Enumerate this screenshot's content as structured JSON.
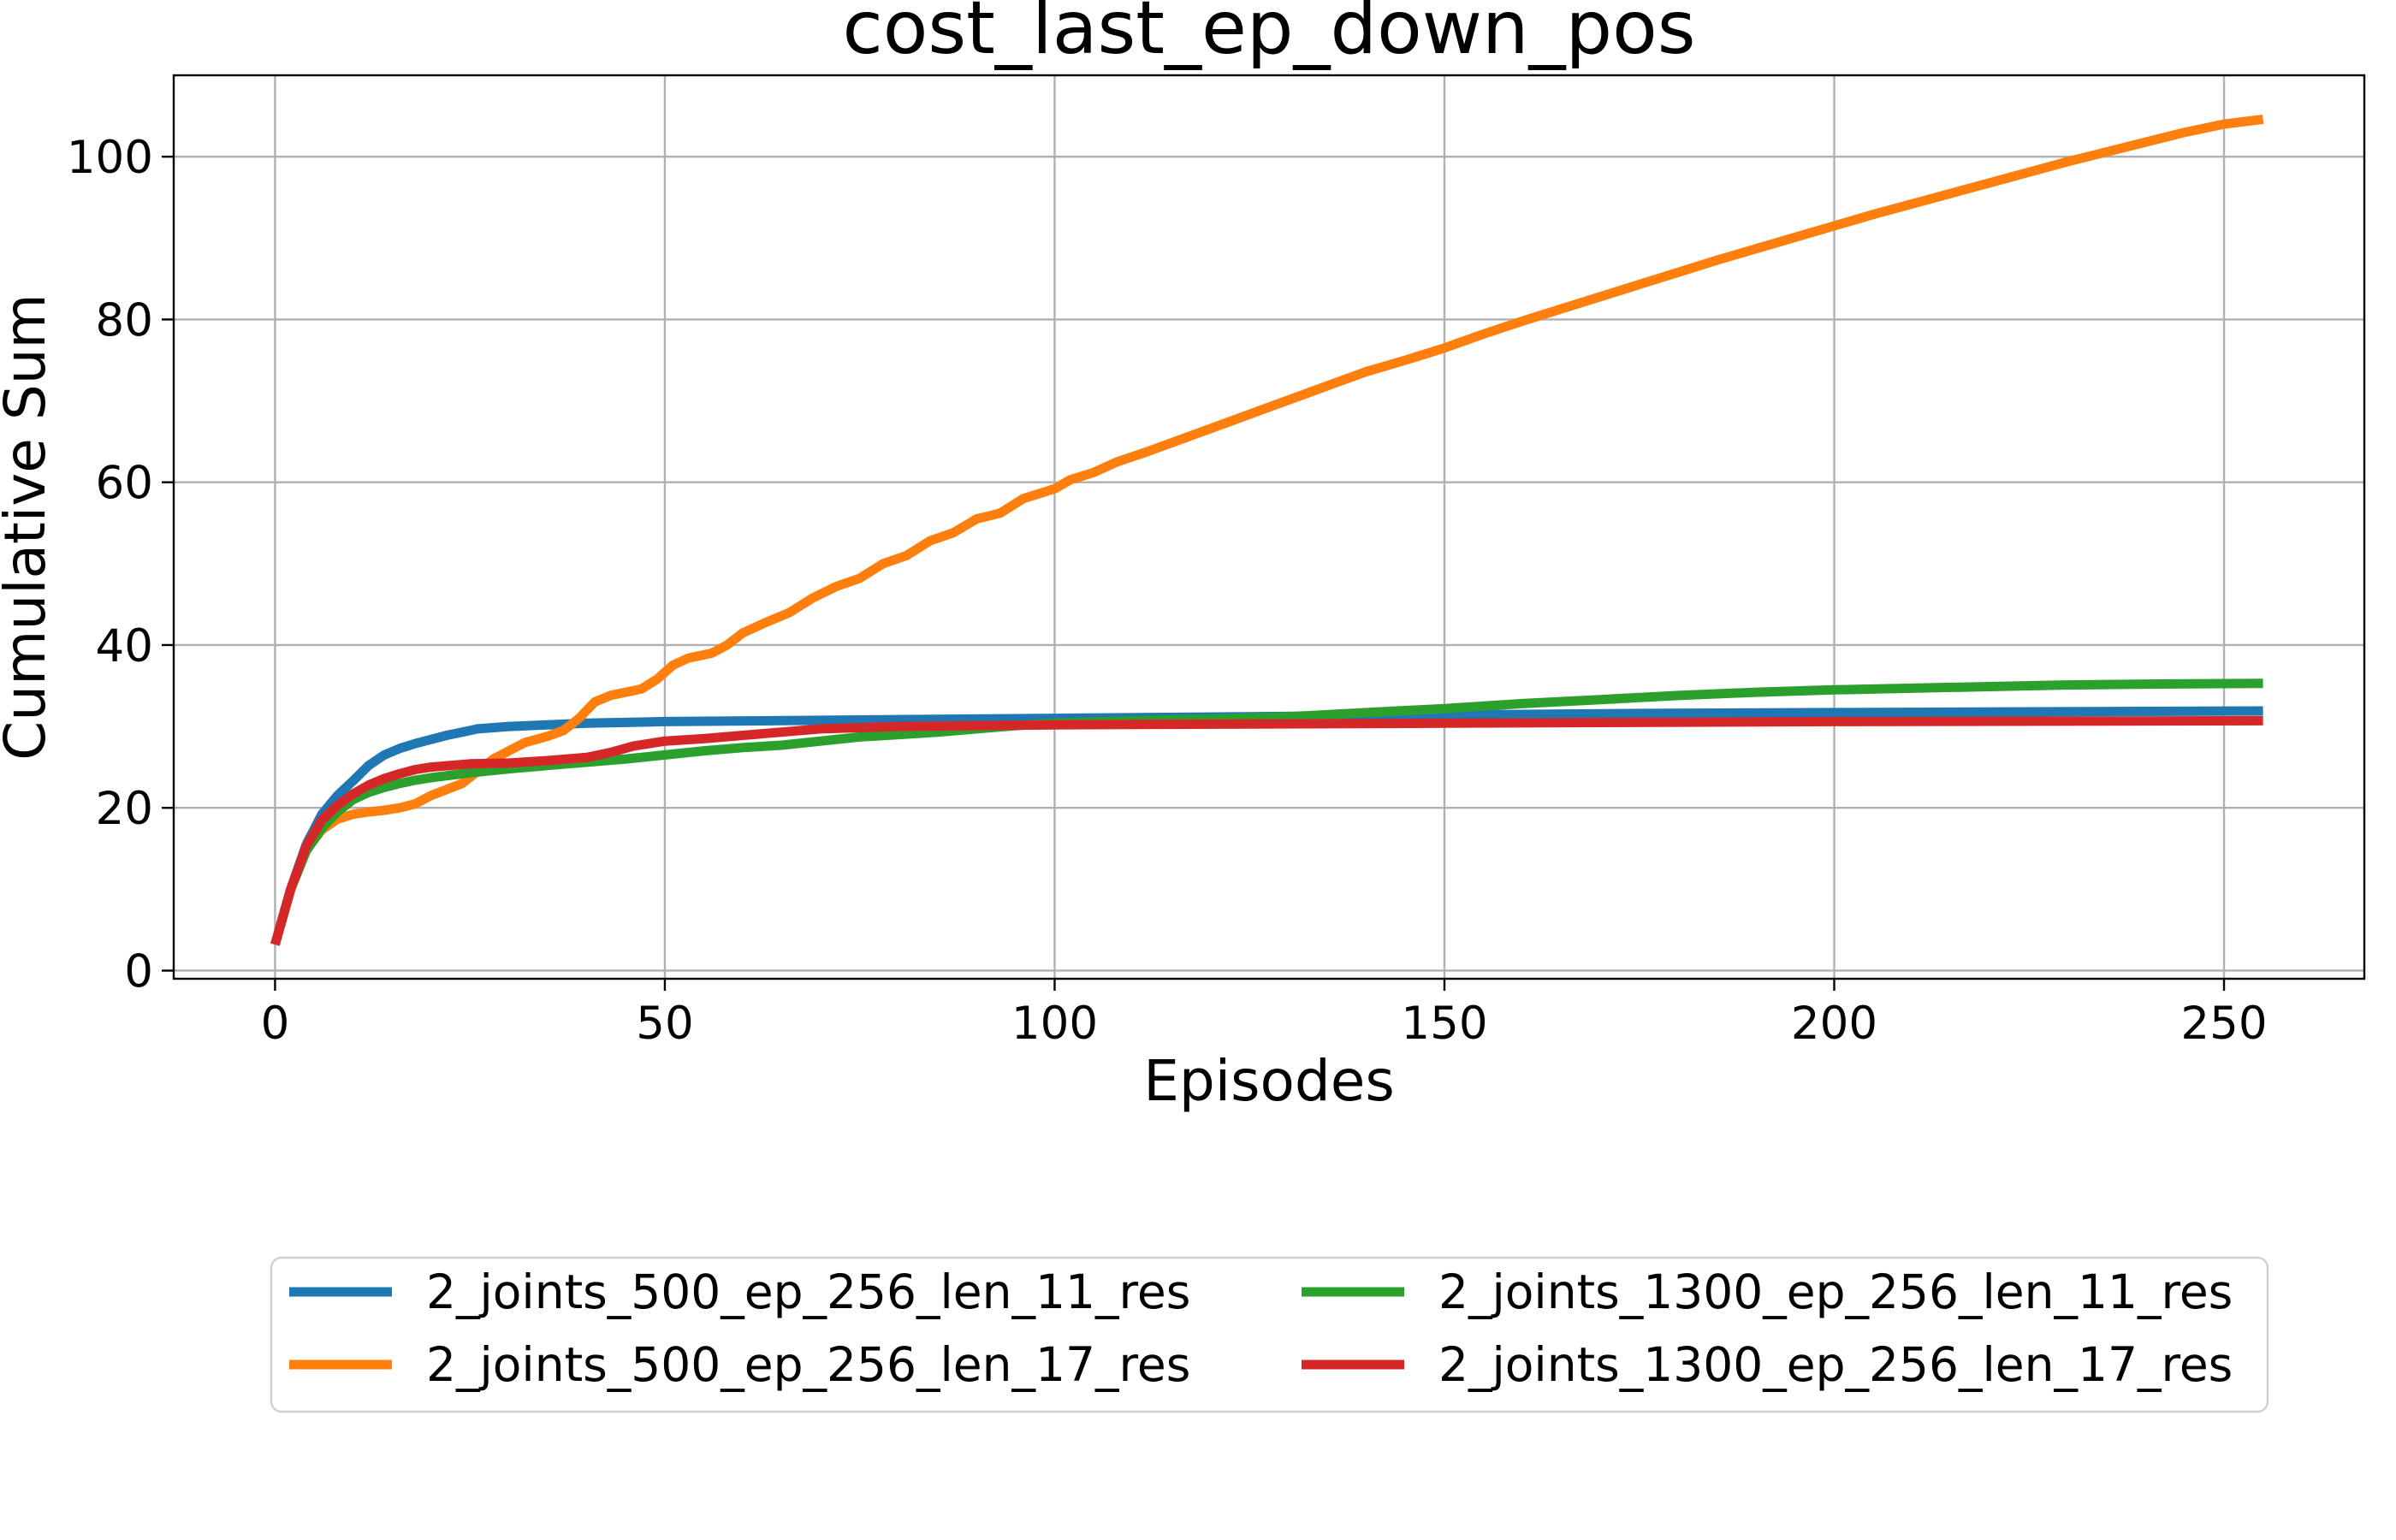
{
  "chart_data": {
    "type": "line",
    "title": "cost_last_ep_down_pos",
    "xlabel": "Episodes",
    "ylabel": "Cumulative Sum",
    "xlim": [
      -13,
      268
    ],
    "ylim": [
      -1,
      110
    ],
    "xticks": [
      0,
      50,
      100,
      150,
      200,
      250
    ],
    "yticks": [
      0,
      20,
      40,
      60,
      80,
      100
    ],
    "grid": true,
    "legend_position": "below plot, two columns",
    "series": [
      {
        "name": "2_joints_500_ep_256_len_11_res",
        "color": "#1f77b4",
        "points": [
          [
            0,
            3.2
          ],
          [
            2,
            10
          ],
          [
            4,
            15.5
          ],
          [
            6,
            19.2
          ],
          [
            8,
            21.5
          ],
          [
            10,
            23.3
          ],
          [
            12,
            25.2
          ],
          [
            14,
            26.5
          ],
          [
            16,
            27.3
          ],
          [
            18,
            27.9
          ],
          [
            20,
            28.4
          ],
          [
            22,
            28.9
          ],
          [
            24,
            29.3
          ],
          [
            26,
            29.7
          ],
          [
            30,
            30.0
          ],
          [
            35,
            30.2
          ],
          [
            40,
            30.4
          ],
          [
            50,
            30.6
          ],
          [
            75,
            30.8
          ],
          [
            100,
            31.0
          ],
          [
            125,
            31.2
          ],
          [
            150,
            31.4
          ],
          [
            175,
            31.6
          ],
          [
            200,
            31.7
          ],
          [
            225,
            31.8
          ],
          [
            255,
            31.9
          ]
        ]
      },
      {
        "name": "2_joints_500_ep_256_len_17_res",
        "color": "#ff7f0e",
        "points": [
          [
            0,
            3.2
          ],
          [
            2,
            10
          ],
          [
            4,
            14.8
          ],
          [
            6,
            17.3
          ],
          [
            8,
            18.6
          ],
          [
            10,
            19.2
          ],
          [
            12,
            19.5
          ],
          [
            14,
            19.7
          ],
          [
            16,
            20.0
          ],
          [
            18,
            20.5
          ],
          [
            20,
            21.5
          ],
          [
            24,
            23.0
          ],
          [
            26,
            24.5
          ],
          [
            28,
            26.0
          ],
          [
            30,
            27.0
          ],
          [
            32,
            28.0
          ],
          [
            35,
            28.8
          ],
          [
            37,
            29.5
          ],
          [
            39,
            31.0
          ],
          [
            41,
            33.0
          ],
          [
            43,
            33.8
          ],
          [
            45,
            34.2
          ],
          [
            47,
            34.6
          ],
          [
            49,
            35.8
          ],
          [
            51,
            37.5
          ],
          [
            53,
            38.4
          ],
          [
            56,
            39.0
          ],
          [
            58,
            40.0
          ],
          [
            60,
            41.5
          ],
          [
            63,
            42.8
          ],
          [
            66,
            44.0
          ],
          [
            69,
            45.8
          ],
          [
            72,
            47.2
          ],
          [
            75,
            48.2
          ],
          [
            78,
            50.0
          ],
          [
            81,
            51.0
          ],
          [
            84,
            52.8
          ],
          [
            87,
            53.8
          ],
          [
            90,
            55.5
          ],
          [
            93,
            56.2
          ],
          [
            96,
            58.0
          ],
          [
            100,
            59.2
          ],
          [
            102,
            60.3
          ],
          [
            105,
            61.2
          ],
          [
            108,
            62.5
          ],
          [
            112,
            63.8
          ],
          [
            116,
            65.2
          ],
          [
            120,
            66.6
          ],
          [
            124,
            68.0
          ],
          [
            128,
            69.4
          ],
          [
            132,
            70.8
          ],
          [
            136,
            72.2
          ],
          [
            140,
            73.6
          ],
          [
            145,
            75.0
          ],
          [
            150,
            76.5
          ],
          [
            155,
            78.2
          ],
          [
            160,
            79.8
          ],
          [
            165,
            81.3
          ],
          [
            170,
            82.8
          ],
          [
            175,
            84.3
          ],
          [
            180,
            85.8
          ],
          [
            185,
            87.3
          ],
          [
            190,
            88.7
          ],
          [
            195,
            90.1
          ],
          [
            200,
            91.5
          ],
          [
            205,
            92.9
          ],
          [
            210,
            94.2
          ],
          [
            215,
            95.5
          ],
          [
            220,
            96.8
          ],
          [
            225,
            98.1
          ],
          [
            230,
            99.4
          ],
          [
            235,
            100.6
          ],
          [
            240,
            101.8
          ],
          [
            245,
            103.0
          ],
          [
            250,
            104.0
          ],
          [
            255,
            104.6
          ]
        ]
      },
      {
        "name": "2_joints_1300_ep_256_len_11_res",
        "color": "#2ca02c",
        "points": [
          [
            0,
            3.2
          ],
          [
            2,
            10
          ],
          [
            4,
            14.7
          ],
          [
            6,
            17.5
          ],
          [
            8,
            19.5
          ],
          [
            10,
            21.0
          ],
          [
            12,
            21.9
          ],
          [
            14,
            22.5
          ],
          [
            16,
            23.0
          ],
          [
            18,
            23.4
          ],
          [
            20,
            23.7
          ],
          [
            25,
            24.3
          ],
          [
            30,
            24.8
          ],
          [
            35,
            25.2
          ],
          [
            40,
            25.6
          ],
          [
            45,
            26.0
          ],
          [
            50,
            26.5
          ],
          [
            55,
            27.0
          ],
          [
            60,
            27.4
          ],
          [
            65,
            27.7
          ],
          [
            70,
            28.2
          ],
          [
            75,
            28.7
          ],
          [
            80,
            29.0
          ],
          [
            85,
            29.3
          ],
          [
            90,
            29.7
          ],
          [
            95,
            30.1
          ],
          [
            100,
            30.4
          ],
          [
            110,
            30.7
          ],
          [
            120,
            30.9
          ],
          [
            130,
            31.2
          ],
          [
            140,
            31.7
          ],
          [
            150,
            32.2
          ],
          [
            160,
            32.8
          ],
          [
            170,
            33.3
          ],
          [
            180,
            33.8
          ],
          [
            190,
            34.2
          ],
          [
            200,
            34.5
          ],
          [
            210,
            34.7
          ],
          [
            220,
            34.9
          ],
          [
            230,
            35.1
          ],
          [
            240,
            35.2
          ],
          [
            255,
            35.3
          ]
        ]
      },
      {
        "name": "2_joints_1300_ep_256_len_17_res",
        "color": "#d62728",
        "points": [
          [
            0,
            3.2
          ],
          [
            2,
            10
          ],
          [
            4,
            15.3
          ],
          [
            6,
            18.5
          ],
          [
            8,
            20.3
          ],
          [
            10,
            21.7
          ],
          [
            12,
            22.8
          ],
          [
            14,
            23.6
          ],
          [
            16,
            24.2
          ],
          [
            18,
            24.7
          ],
          [
            20,
            25.0
          ],
          [
            25,
            25.4
          ],
          [
            30,
            25.5
          ],
          [
            35,
            25.8
          ],
          [
            40,
            26.2
          ],
          [
            43,
            26.8
          ],
          [
            46,
            27.6
          ],
          [
            50,
            28.2
          ],
          [
            55,
            28.5
          ],
          [
            60,
            28.9
          ],
          [
            65,
            29.3
          ],
          [
            70,
            29.7
          ],
          [
            80,
            30.0
          ],
          [
            100,
            30.2
          ],
          [
            150,
            30.4
          ],
          [
            200,
            30.6
          ],
          [
            255,
            30.7
          ]
        ]
      }
    ]
  }
}
